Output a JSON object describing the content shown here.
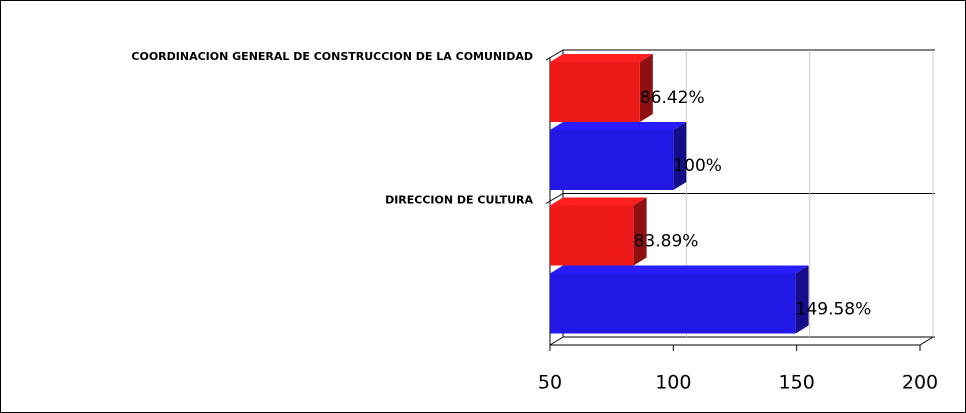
{
  "chart_data": {
    "type": "bar",
    "orientation": "horizontal",
    "three_d": true,
    "categories": [
      "COORDINACION GENERAL DE CONSTRUCCION DE LA COMUNIDAD",
      "DIRECCION DE CULTURA"
    ],
    "series": [
      {
        "color": "#ee1a1a",
        "values": [
          86.42,
          83.89
        ],
        "value_labels": [
          "86.42%",
          "83.89%"
        ]
      },
      {
        "color": "#2218e6",
        "values": [
          100,
          149.58
        ],
        "value_labels": [
          "100%",
          "149.58%"
        ]
      }
    ],
    "xlim": [
      50,
      200
    ],
    "xticks": [
      50,
      100,
      150,
      200
    ],
    "grid": true
  }
}
